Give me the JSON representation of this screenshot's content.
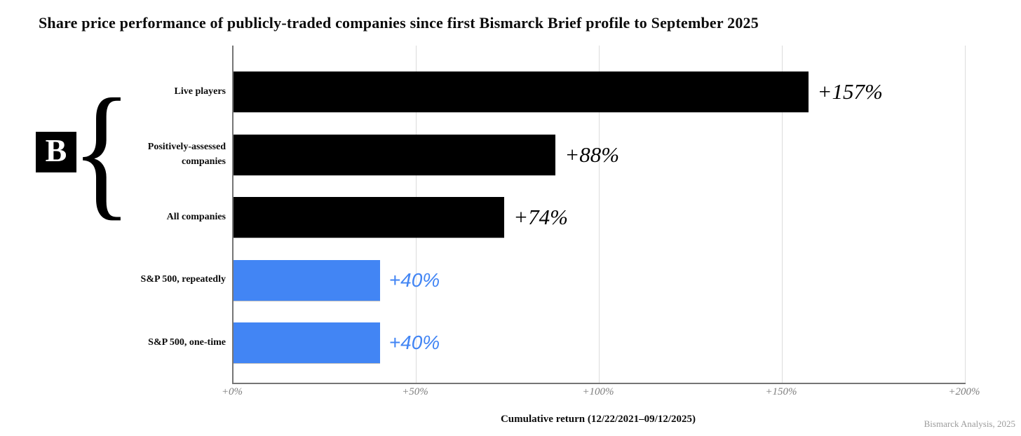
{
  "title": "Share price performance of publicly-traded companies since first Bismarck Brief profile to September 2025",
  "logo": {
    "letter": "B",
    "brace_glyph": "{"
  },
  "chart_data": {
    "type": "bar",
    "orientation": "horizontal",
    "title": "Share price performance of publicly-traded companies since first Bismarck Brief profile to September 2025",
    "categories": [
      "Live players",
      "Positively-assessed companies",
      "All companies",
      "S&P 500, repeatedly",
      "S&P 500, one-time"
    ],
    "values": [
      157,
      88,
      74,
      40,
      40
    ],
    "value_labels": [
      "+157%",
      "+88%",
      "+74%",
      "+40%",
      "+40%"
    ],
    "bar_colors": [
      "#000000",
      "#000000",
      "#000000",
      "#4285f4",
      "#4285f4"
    ],
    "value_label_styles": [
      "serif-black",
      "serif-black",
      "serif-black",
      "sans-blue",
      "sans-blue"
    ],
    "x_ticks": [
      "+0%",
      "+50%",
      "+100%",
      "+150%",
      "+200%"
    ],
    "xlim": [
      0,
      200
    ],
    "grid": true,
    "xlabel": "Cumulative return (12/22/2021–09/12/2025)",
    "ylabel": "",
    "legend": "none",
    "accent_blue": "#4285f4",
    "bar_black": "#000000"
  },
  "footer": {
    "credit": "Bismarck Analysis, 2025"
  }
}
